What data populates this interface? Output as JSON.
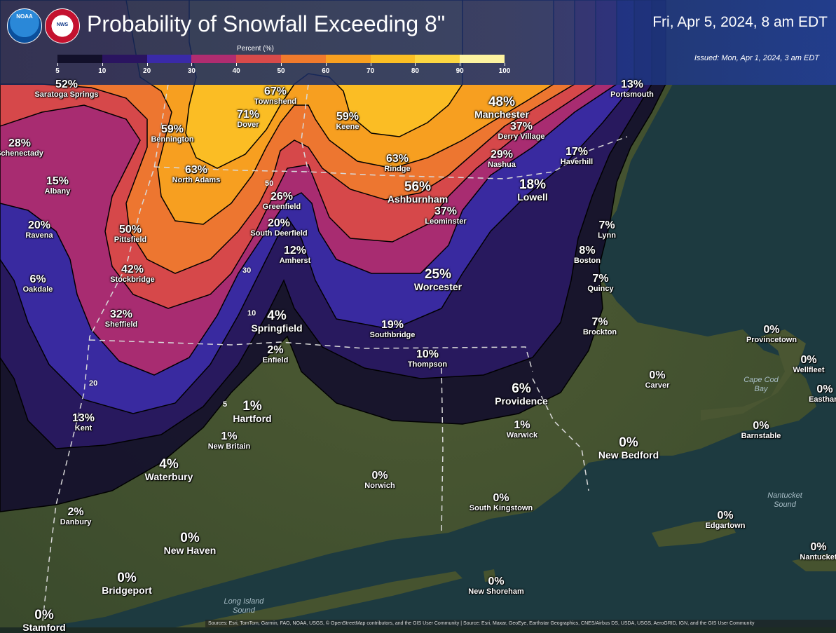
{
  "header": {
    "title": "Probability of Snowfall Exceeding 8\"",
    "valid_time": "Fri, Apr 5, 2024, 8 am EDT",
    "issued": "Issued: Mon, Apr 1, 2024, 3 am EDT",
    "logo_noaa": "NOAA",
    "logo_nws": "NWS"
  },
  "legend": {
    "title": "Percent (%)",
    "ticks": [
      "5",
      "10",
      "20",
      "30",
      "40",
      "50",
      "60",
      "70",
      "80",
      "90",
      "100"
    ],
    "colors": [
      "#12102a",
      "#2a1460",
      "#3a2aa8",
      "#b02c70",
      "#d84a4a",
      "#f07a2c",
      "#f8a020",
      "#fbbf24",
      "#fcd742",
      "#fdf3a0"
    ]
  },
  "contour_labels": [
    "50",
    "30",
    "10",
    "20",
    "5"
  ],
  "cities": [
    {
      "pct": "52%",
      "name": "Saratoga Springs"
    },
    {
      "pct": "67%",
      "name": "Townshend"
    },
    {
      "pct": "48%",
      "name": "Manchester"
    },
    {
      "pct": "13%",
      "name": "Portsmouth"
    },
    {
      "pct": "28%",
      "name": "Schenectady"
    },
    {
      "pct": "59%",
      "name": "Bennington"
    },
    {
      "pct": "71%",
      "name": "Dover"
    },
    {
      "pct": "59%",
      "name": "Keene"
    },
    {
      "pct": "37%",
      "name": "Derry Village"
    },
    {
      "pct": "29%",
      "name": "Nashua"
    },
    {
      "pct": "17%",
      "name": "Haverhill"
    },
    {
      "pct": "63%",
      "name": "Rindge"
    },
    {
      "pct": "15%",
      "name": "Albany"
    },
    {
      "pct": "63%",
      "name": "North Adams"
    },
    {
      "pct": "26%",
      "name": "Greenfield"
    },
    {
      "pct": "56%",
      "name": "Ashburnham"
    },
    {
      "pct": "18%",
      "name": "Lowell"
    },
    {
      "pct": "20%",
      "name": "Ravena"
    },
    {
      "pct": "50%",
      "name": "Pittsfield"
    },
    {
      "pct": "20%",
      "name": "South Deerfield"
    },
    {
      "pct": "37%",
      "name": "Leominster"
    },
    {
      "pct": "7%",
      "name": "Lynn"
    },
    {
      "pct": "12%",
      "name": "Amherst"
    },
    {
      "pct": "8%",
      "name": "Boston"
    },
    {
      "pct": "6%",
      "name": "Oakdale"
    },
    {
      "pct": "42%",
      "name": "Stockbridge"
    },
    {
      "pct": "25%",
      "name": "Worcester"
    },
    {
      "pct": "7%",
      "name": "Quincy"
    },
    {
      "pct": "32%",
      "name": "Sheffield"
    },
    {
      "pct": "4%",
      "name": "Springfield"
    },
    {
      "pct": "19%",
      "name": "Southbridge"
    },
    {
      "pct": "7%",
      "name": "Brockton"
    },
    {
      "pct": "0%",
      "name": "Provincetown"
    },
    {
      "pct": "2%",
      "name": "Enfield"
    },
    {
      "pct": "10%",
      "name": "Thompson"
    },
    {
      "pct": "0%",
      "name": "Wellfleet"
    },
    {
      "pct": "0%",
      "name": "Carver"
    },
    {
      "pct": "6%",
      "name": "Providence"
    },
    {
      "pct": "13%",
      "name": "Kent"
    },
    {
      "pct": "1%",
      "name": "Hartford"
    },
    {
      "pct": "0%",
      "name": "Eastham"
    },
    {
      "pct": "1%",
      "name": "Warwick"
    },
    {
      "pct": "0%",
      "name": "Barnstable"
    },
    {
      "pct": "1%",
      "name": "New Britain"
    },
    {
      "pct": "0%",
      "name": "New Bedford"
    },
    {
      "pct": "4%",
      "name": "Waterbury"
    },
    {
      "pct": "0%",
      "name": "Norwich"
    },
    {
      "pct": "0%",
      "name": "South Kingstown"
    },
    {
      "pct": "2%",
      "name": "Danbury"
    },
    {
      "pct": "0%",
      "name": "Edgartown"
    },
    {
      "pct": "0%",
      "name": "New Haven"
    },
    {
      "pct": "0%",
      "name": "Nantucket"
    },
    {
      "pct": "0%",
      "name": "Bridgeport"
    },
    {
      "pct": "0%",
      "name": "New Shoreham"
    },
    {
      "pct": "0%",
      "name": "Stamford"
    }
  ],
  "water_labels": [
    "Cape Cod Bay",
    "Nantucket Sound",
    "Long Island Sound"
  ],
  "attribution": "Sources: Esri, TomTom, Garmin, FAO, NOAA, USGS, © OpenStreetMap contributors, and the GIS User Community | Source: Esri, Maxar, GeoEye, Earthstar Geographics, CNES/Airbus DS, USDA, USGS, AeroGRID, IGN, and the GIS User Community"
}
